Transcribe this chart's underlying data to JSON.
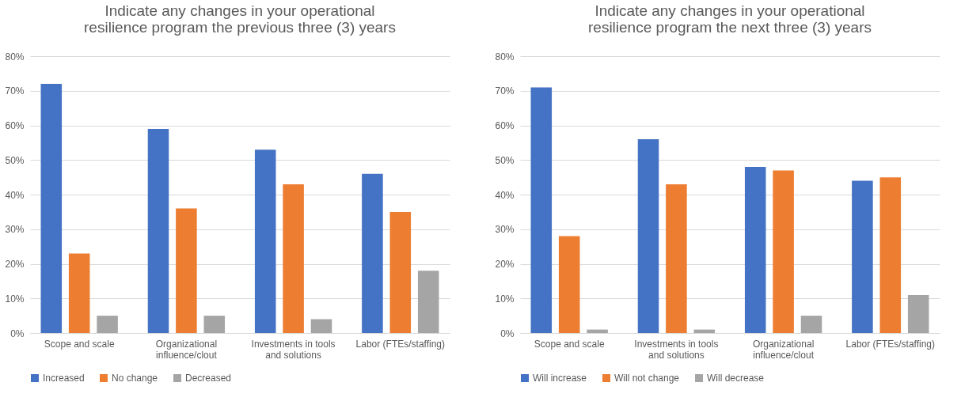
{
  "chart_data": [
    {
      "type": "bar",
      "title": "Indicate any changes in your operational resilience program the previous three (3) years",
      "categories": [
        "Scope and scale",
        "Organizational influence/clout",
        "Investments in tools and solutions",
        "Labor (FTEs/staffing)"
      ],
      "series": [
        {
          "name": "Increased",
          "color": "#4472c4",
          "values": [
            72,
            59,
            53,
            46
          ]
        },
        {
          "name": "No change",
          "color": "#ed7d31",
          "values": [
            23,
            36,
            43,
            35
          ]
        },
        {
          "name": "Decreased",
          "color": "#a5a5a5",
          "values": [
            5,
            5,
            4,
            18
          ]
        }
      ],
      "ylim": [
        0,
        80
      ],
      "yticks": [
        {
          "value": 0,
          "label": "0%"
        },
        {
          "value": 10,
          "label": "10%"
        },
        {
          "value": 20,
          "label": "20%"
        },
        {
          "value": 30,
          "label": "30%"
        },
        {
          "value": 40,
          "label": "40%"
        },
        {
          "value": 50,
          "label": "50%"
        },
        {
          "value": 60,
          "label": "60%"
        },
        {
          "value": 70,
          "label": "70%"
        },
        {
          "value": 80,
          "label": "80%"
        }
      ],
      "grid": "y",
      "legend": "bottom"
    },
    {
      "type": "bar",
      "title": "Indicate any changes in your operational resilience program the next three (3) years",
      "categories": [
        "Scope and scale",
        "Investments in tools and solutions",
        "Organizational influence/clout",
        "Labor (FTEs/staffing)"
      ],
      "series": [
        {
          "name": "Will increase",
          "color": "#4472c4",
          "values": [
            71,
            56,
            48,
            44
          ]
        },
        {
          "name": "Will not change",
          "color": "#ed7d31",
          "values": [
            28,
            43,
            47,
            45
          ]
        },
        {
          "name": "Will decrease",
          "color": "#a5a5a5",
          "values": [
            1,
            1,
            5,
            11
          ]
        }
      ],
      "ylim": [
        0,
        80
      ],
      "yticks": [
        {
          "value": 0,
          "label": "0%"
        },
        {
          "value": 10,
          "label": "10%"
        },
        {
          "value": 20,
          "label": "20%"
        },
        {
          "value": 30,
          "label": "30%"
        },
        {
          "value": 40,
          "label": "40%"
        },
        {
          "value": 50,
          "label": "50%"
        },
        {
          "value": 60,
          "label": "60%"
        },
        {
          "value": 70,
          "label": "70%"
        },
        {
          "value": 80,
          "label": "80%"
        }
      ],
      "grid": "y",
      "legend": "bottom"
    }
  ]
}
